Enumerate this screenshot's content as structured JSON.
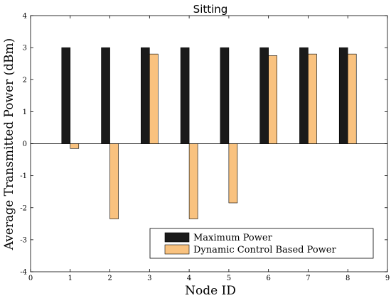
{
  "chart_data": {
    "type": "bar",
    "title": "Sitting",
    "xlabel": "Node ID",
    "ylabel": "Average Transmitted Power (dBm)",
    "x": [
      1,
      2,
      3,
      4,
      5,
      6,
      7,
      8
    ],
    "xlim": [
      0,
      9
    ],
    "ylim": [
      -4,
      4
    ],
    "xticks": [
      "0",
      "1",
      "2",
      "3",
      "4",
      "5",
      "6",
      "7",
      "8",
      "9"
    ],
    "yticks": [
      "-4",
      "-3",
      "-2",
      "-1",
      "0",
      "1",
      "2",
      "3",
      "4"
    ],
    "grid": false,
    "legend_position": "bottom-right",
    "series": [
      {
        "name": "Maximum Power",
        "color": "#1a1a1a",
        "values": [
          3,
          3,
          3,
          3,
          3,
          3,
          3,
          3
        ]
      },
      {
        "name": "Dynamic Control Based Power",
        "color": "#f9c27f",
        "values": [
          -0.15,
          -2.35,
          2.8,
          -2.35,
          -1.85,
          2.75,
          2.8,
          2.8
        ]
      }
    ]
  }
}
